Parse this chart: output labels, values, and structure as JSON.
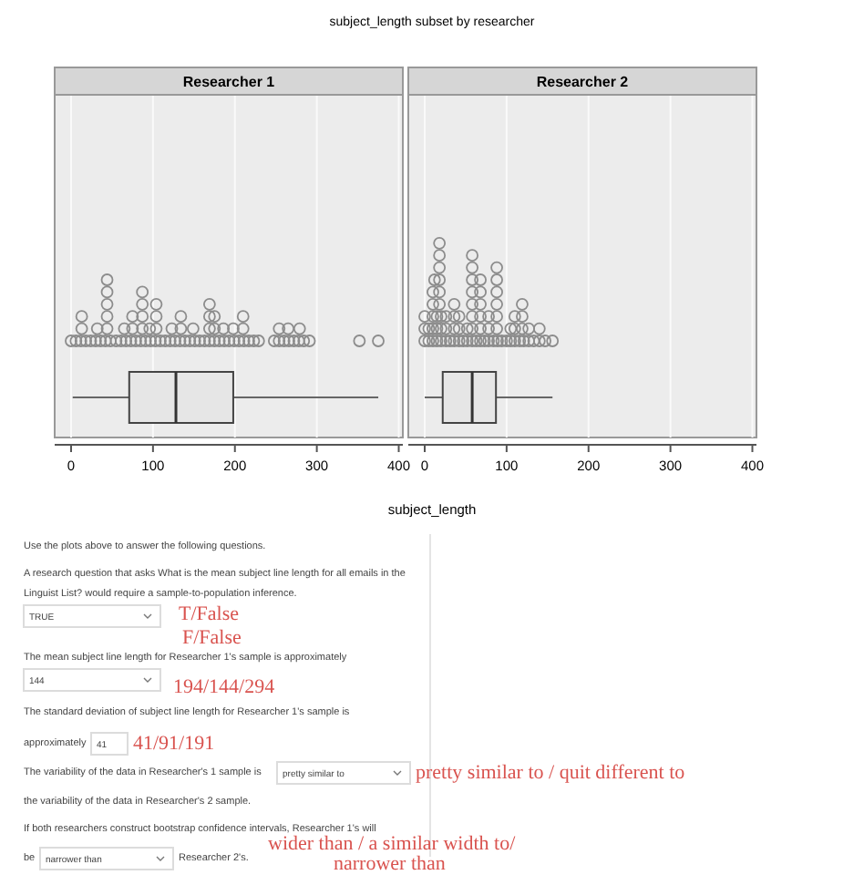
{
  "chart_data": [
    {
      "type": "box",
      "orientation": "horizontal",
      "title": "subject_length subset by researcher",
      "subtitle": "Researcher 1",
      "xlabel": "subject_length",
      "categories": [
        null
      ],
      "xlim": [
        -20,
        405
      ],
      "xticks": [
        0,
        100,
        200,
        300,
        400
      ],
      "grid": "x",
      "tick_labels": "x",
      "color": "#e6e6e6",
      "boxes": [
        {
          "low": 2,
          "q1": 71,
          "median": 128,
          "q3": 198,
          "high": 375
        }
      ],
      "series": [
        {
          "type": "scatter",
          "marker": "circle",
          "color": "#8c8c8c",
          "x": [
            null,
            null,
            null,
            null,
            null,
            null,
            null,
            null,
            null,
            null,
            null,
            null,
            null,
            null,
            null,
            null,
            null,
            null,
            null,
            null,
            null,
            null,
            null,
            null,
            null,
            null,
            null,
            null,
            null,
            null,
            null,
            null,
            null,
            null,
            null,
            null,
            null,
            null,
            null,
            null,
            null,
            null,
            null,
            null,
            null,
            null,
            null,
            null,
            null,
            null,
            null,
            null,
            null,
            null,
            null,
            null,
            null,
            null,
            null,
            null,
            null,
            null,
            null,
            null,
            null,
            null,
            null,
            null,
            null,
            null,
            null,
            null,
            null,
            null,
            null,
            null,
            null,
            null,
            null,
            null,
            null,
            null,
            null,
            null
          ],
          "values": [
            0,
            6,
            12,
            18,
            24,
            30,
            36,
            42,
            48,
            55,
            61,
            67,
            73,
            79,
            85,
            91,
            97,
            103,
            109,
            115,
            121,
            127,
            133,
            139,
            145,
            151,
            157,
            163,
            169,
            175,
            181,
            187,
            193,
            199,
            205,
            211,
            217,
            223,
            229,
            248,
            254,
            260,
            266,
            272,
            278,
            284,
            291,
            352,
            375,
            13,
            32,
            44,
            65,
            75,
            87,
            96,
            104,
            123,
            134,
            149,
            169,
            175,
            186,
            198,
            210,
            254,
            265,
            279,
            13,
            44,
            75,
            87,
            104,
            134,
            169,
            175,
            210,
            44,
            87,
            104,
            169,
            44,
            87,
            44
          ]
        }
      ]
    },
    {
      "type": "box",
      "orientation": "horizontal",
      "subtitle": "Researcher 2",
      "categories": [
        null
      ],
      "xlim": [
        -20,
        405
      ],
      "xticks": [
        0,
        100,
        200,
        300,
        400
      ],
      "grid": "x",
      "tick_labels": "x",
      "color": "#e6e6e6",
      "boxes": [
        {
          "low": 0,
          "q1": 22,
          "median": 58,
          "q3": 87,
          "high": 156
        }
      ],
      "series": [
        {
          "type": "scatter",
          "marker": "circle",
          "color": "#8c8c8c",
          "x": [
            null,
            null,
            null,
            null,
            null,
            null,
            null,
            null,
            null,
            null,
            null,
            null,
            null,
            null,
            null,
            null,
            null,
            null,
            null,
            null,
            null,
            null,
            null,
            null,
            null,
            null,
            null,
            null,
            null,
            null,
            null,
            null,
            null,
            null,
            null,
            null,
            null,
            null,
            null,
            null,
            null,
            null,
            null,
            null,
            null,
            null,
            null,
            null,
            null,
            null,
            null,
            null,
            null,
            null,
            null,
            null,
            null,
            null,
            null,
            null,
            null,
            null,
            null,
            null,
            null,
            null,
            null,
            null,
            null,
            null,
            null,
            null,
            null,
            null,
            null,
            null,
            null,
            null,
            null,
            null,
            null,
            null,
            null
          ],
          "values": [
            0,
            5,
            10,
            15,
            20,
            26,
            31,
            36,
            42,
            47,
            52,
            58,
            63,
            68,
            73,
            78,
            84,
            89,
            94,
            100,
            105,
            110,
            116,
            121,
            127,
            133,
            140,
            147,
            156,
            0,
            5,
            10,
            15,
            20,
            26,
            36,
            42,
            52,
            58,
            68,
            78,
            88,
            105,
            110,
            119,
            127,
            140,
            0,
            10,
            15,
            20,
            26,
            36,
            42,
            58,
            68,
            78,
            88,
            110,
            119,
            10,
            18,
            36,
            58,
            68,
            88,
            119,
            10,
            18,
            58,
            68,
            88,
            12,
            18,
            58,
            68,
            88,
            18,
            58,
            88,
            18,
            58,
            18
          ]
        }
      ]
    },
    {
      "type": "other",
      "annotations": [
        "Use the plots above to answer the following questions.",
        "A research question that asks What is the mean subject line length for all emails in the",
        "Linguist List? would require a sample-to-population inference.",
        "TRUE",
        "T/False",
        "F/False",
        "The mean subject line length for Researcher 1's sample is approximately",
        "144",
        "194/144/294",
        "The standard deviation of subject line length for Researcher 1's sample is",
        "approximately",
        "41",
        "41/91/191",
        "The variability of the data in Researcher's 1 sample is",
        "pretty similar to",
        "pretty similar to / quit different to",
        "the variability of the data in Researcher's 2 sample.",
        "If both researchers construct bootstrap confidence intervals, Researcher 1's will",
        "be",
        "narrower than",
        "Researcher 2's.",
        "wider than / a similar width to/",
        "narrower than"
      ]
    }
  ]
}
